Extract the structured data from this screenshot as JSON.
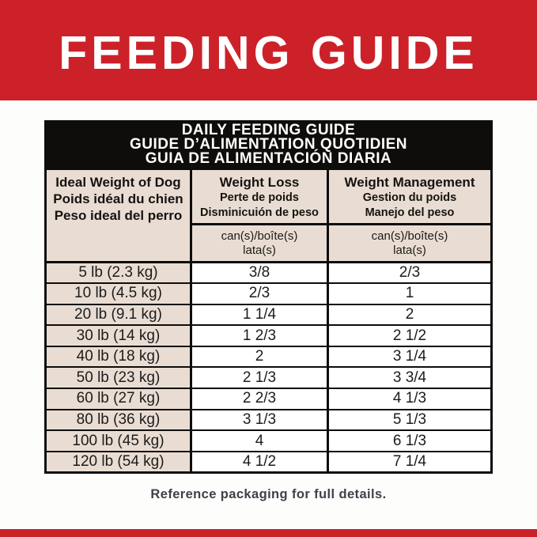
{
  "colors": {
    "brand_red": "#cd2129",
    "header_black": "#0e0d0b",
    "cell_beige": "#e9ddd3",
    "footer_text": "#3d4248"
  },
  "banner": {
    "title": "FEEDING GUIDE"
  },
  "table": {
    "title": {
      "line1": "DAILY FEEDING GUIDE",
      "line2": "GUIDE D’ALIMENTATION QUOTIDIEN",
      "line3": "GUIA DE ALIMENTACIÓN DIARIA"
    },
    "col_weight": {
      "line1": "Ideal Weight of Dog",
      "line2": "Poids idéal du chien",
      "line3": "Peso ideal del perro"
    },
    "col_loss": {
      "line1": "Weight Loss",
      "line2": "Perte de poids",
      "line3": "Disminicuión de peso",
      "unit1": "can(s)/boîte(s)",
      "unit2": "lata(s)"
    },
    "col_mgmt": {
      "line1": "Weight Management",
      "line2": "Gestion du poids",
      "line3": "Manejo del peso",
      "unit1": "can(s)/boîte(s)",
      "unit2": "lata(s)"
    },
    "rows": [
      {
        "weight": "5 lb (2.3 kg)",
        "loss": "3/8",
        "mgmt": "2/3"
      },
      {
        "weight": "10 lb (4.5 kg)",
        "loss": "2/3",
        "mgmt": "1"
      },
      {
        "weight": "20 lb (9.1 kg)",
        "loss": "1 1/4",
        "mgmt": "2"
      },
      {
        "weight": "30 lb (14 kg)",
        "loss": "1 2/3",
        "mgmt": "2 1/2"
      },
      {
        "weight": "40 lb (18 kg)",
        "loss": "2",
        "mgmt": "3 1/4"
      },
      {
        "weight": "50 lb (23 kg)",
        "loss": "2 1/3",
        "mgmt": "3 3/4"
      },
      {
        "weight": "60 lb (27 kg)",
        "loss": "2 2/3",
        "mgmt": "4 1/3"
      },
      {
        "weight": "80 lb (36 kg)",
        "loss": "3 1/3",
        "mgmt": "5 1/3"
      },
      {
        "weight": "100 lb (45 kg)",
        "loss": "4",
        "mgmt": "6 1/3"
      },
      {
        "weight": "120 lb (54 kg)",
        "loss": "4 1/2",
        "mgmt": "7 1/4"
      }
    ]
  },
  "footer": {
    "note": "Reference packaging for full details."
  }
}
